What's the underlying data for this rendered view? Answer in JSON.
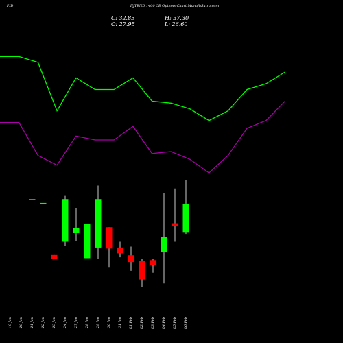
{
  "header": {
    "left": "PID",
    "title": "IIJTEND 1400  CE Options Chart MunafaSutra.com"
  },
  "ohlc": {
    "c_label": "C: 32.85",
    "h_label": "H: 37.30",
    "o_label": "O: 27.95",
    "l_label": "L: 26.60"
  },
  "colors": {
    "background": "#000000",
    "upper_band": "#00ff00",
    "lower_band": "#aa00aa",
    "up_candle": "#00ff00",
    "down_candle": "#ff0000",
    "wick": "#ffffff"
  },
  "chart_data": {
    "type": "candlestick",
    "dates": [
      "19 Jan",
      "20 Jan",
      "21 Jan",
      "22 Jan",
      "23 Jan",
      "24 Jan",
      "27 Jan",
      "28 Jan",
      "29 Jan",
      "30 Jan",
      "31 Jan",
      "01 Feb",
      "02 Feb",
      "03 Feb",
      "04 Feb",
      "05 Feb",
      "06 Feb"
    ],
    "candles": [
      {
        "o": 71.5,
        "h": 71.5,
        "l": 71.5,
        "c": 71.5,
        "dir": "up"
      },
      {
        "o": 69.5,
        "h": 69.5,
        "l": 69.5,
        "c": 69.5,
        "dir": "up"
      },
      {
        "o": 43.0,
        "h": 43.0,
        "l": 40.5,
        "c": 40.5,
        "dir": "down"
      },
      {
        "o": 49.5,
        "h": 73.5,
        "l": 47.5,
        "c": 71.5,
        "dir": "up"
      },
      {
        "o": 54.0,
        "h": 67.0,
        "l": 50.0,
        "c": 56.5,
        "dir": "up"
      },
      {
        "o": 41.0,
        "h": 58.5,
        "l": 41.0,
        "c": 58.5,
        "dir": "up"
      },
      {
        "o": 46.5,
        "h": 78.5,
        "l": 40.5,
        "c": 71.5,
        "dir": "up"
      },
      {
        "o": 57.0,
        "h": 57.0,
        "l": 36.5,
        "c": 46.0,
        "dir": "down"
      },
      {
        "o": 46.5,
        "h": 49.5,
        "l": 41.5,
        "c": 43.5,
        "dir": "down"
      },
      {
        "o": 42.5,
        "h": 47.0,
        "l": 34.5,
        "c": 39.0,
        "dir": "down"
      },
      {
        "o": 39.5,
        "h": 40.5,
        "l": 26.0,
        "c": 30.0,
        "dir": "down"
      },
      {
        "o": 40.0,
        "h": 40.5,
        "l": 33.5,
        "c": 37.5,
        "dir": "down"
      },
      {
        "o": 44.0,
        "h": 74.5,
        "l": 28.0,
        "c": 52.0,
        "dir": "up"
      },
      {
        "o": 57.5,
        "h": 77.0,
        "l": 49.5,
        "c": 59.0,
        "dir": "down"
      },
      {
        "o": 54.5,
        "h": 81.5,
        "l": 53.5,
        "c": 69.0,
        "dir": "up"
      }
    ],
    "candle_start_index": 1,
    "upper_band": [
      145,
      145,
      142,
      117,
      134,
      128,
      128,
      134,
      122,
      121,
      118,
      112,
      117,
      128,
      131,
      137
    ],
    "lower_band": [
      111,
      111,
      94,
      89,
      104,
      102,
      102,
      109,
      95,
      96,
      92,
      85,
      94,
      108,
      112,
      122
    ],
    "ylim": [
      15,
      160
    ]
  }
}
